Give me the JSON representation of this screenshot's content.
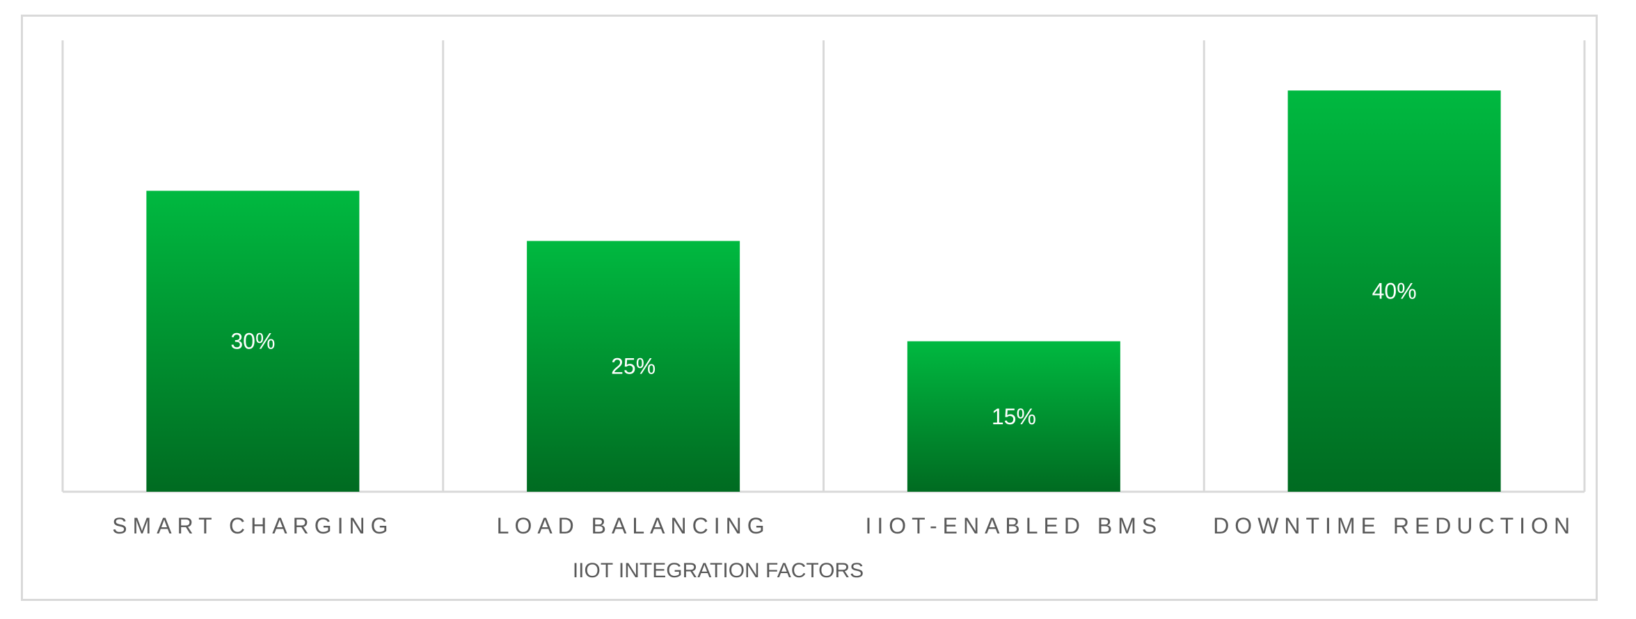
{
  "chart_data": {
    "type": "bar",
    "title": "",
    "xlabel": "IIOT INTEGRATION FACTORS",
    "ylabel": "",
    "categories": [
      "SMART CHARGING",
      "LOAD BALANCING",
      "IIOT-ENABLED BMS",
      "DOWNTIME REDUCTION"
    ],
    "values": [
      30,
      25,
      15,
      40
    ],
    "data_labels": [
      "30%",
      "25%",
      "15%",
      "40%"
    ],
    "ylim": [
      0,
      45
    ],
    "grid": "vertical category separators",
    "legend": "none",
    "colors": {
      "bar_top": "#00B940",
      "bar_bottom": "#006B21",
      "grid": "#d9d9d9",
      "label_text": "#595959",
      "data_label_text": "#ffffff"
    }
  }
}
